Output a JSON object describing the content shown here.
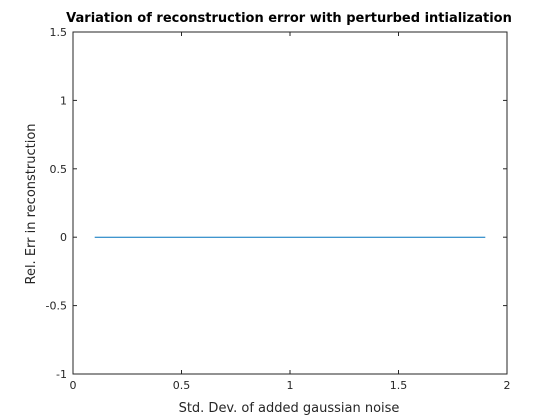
{
  "chart_data": {
    "type": "line",
    "title": "Variation of reconstruction error with perturbed intialization",
    "xlabel": "Std. Dev. of added gaussian noise",
    "ylabel": "Rel. Err in reconstruction",
    "xlim": [
      0,
      2
    ],
    "ylim": [
      -1,
      1.5
    ],
    "xticks": [
      0,
      0.5,
      1,
      1.5,
      2
    ],
    "xtick_labels": [
      "0",
      "0.5",
      "1",
      "1.5",
      "2"
    ],
    "yticks": [
      -1,
      -0.5,
      0,
      0.5,
      1,
      1.5
    ],
    "ytick_labels": [
      "-1",
      "-0.5",
      "0",
      "0.5",
      "1",
      "1.5"
    ],
    "grid": false,
    "series": [
      {
        "color": "#0072BD",
        "x": [
          0.1,
          0.2,
          0.3,
          0.4,
          0.5,
          0.6,
          0.7,
          0.8,
          0.9,
          1.0,
          1.1,
          1.2,
          1.3,
          1.4,
          1.5,
          1.6,
          1.7,
          1.8,
          1.9
        ],
        "y": [
          0,
          0,
          0,
          0,
          0,
          0,
          0,
          0,
          0,
          0,
          0,
          0,
          0,
          0,
          0,
          0,
          0,
          0,
          0
        ]
      }
    ]
  }
}
